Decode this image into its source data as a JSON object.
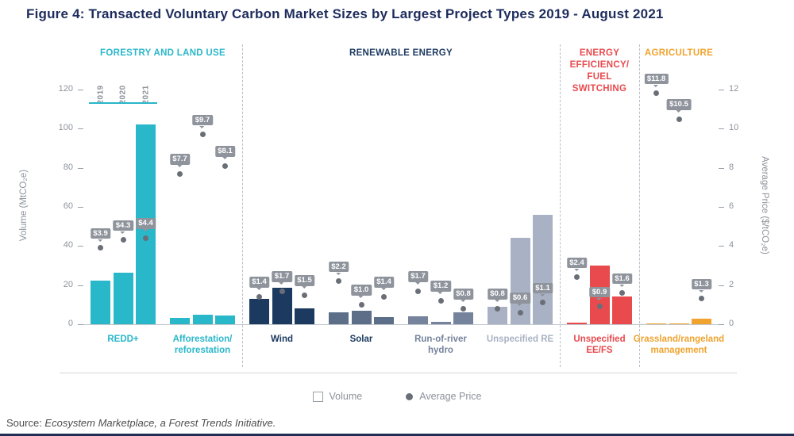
{
  "title": "Figure 4: Transacted Voluntary Carbon Market Sizes by Largest Project Types 2019 - August 2021",
  "legend": {
    "volume_label": "Volume",
    "price_label": "Average Price"
  },
  "source": {
    "prefix": "Source: ",
    "text": "Ecosystem Marketplace, a Forest Trends Initiative."
  },
  "chart_data": {
    "type": "bar",
    "title": "Transacted Voluntary Carbon Market Sizes by Largest Project Types 2019 - August 2021",
    "years": [
      "2019",
      "2020",
      "2021"
    ],
    "left_axis": {
      "label": "Volume (MtCO₂e)",
      "ticks": [
        0,
        20,
        40,
        60,
        80,
        100,
        120
      ],
      "max": 120
    },
    "right_axis": {
      "label": "Average Price ($/tCO₂e)",
      "ticks": [
        0,
        2,
        4,
        6,
        8,
        10,
        12
      ],
      "max": 12
    },
    "legend_position": "bottom",
    "grid": false,
    "sections": [
      {
        "name": "FORESTRY AND LAND USE",
        "color": "#29b7ca",
        "groups": [
          {
            "label": "REDD+",
            "bar_color": "#29b7ca",
            "label_color": "#29b7ca",
            "volumes": [
              22.5,
              26.5,
              102
            ],
            "prices": [
              3.9,
              4.3,
              4.4
            ]
          },
          {
            "label": "Afforestation/\nreforestation",
            "bar_color": "#29b7ca",
            "label_color": "#29b7ca",
            "volumes": [
              3.2,
              5,
              4.3
            ],
            "prices": [
              7.7,
              9.7,
              8.1
            ]
          }
        ]
      },
      {
        "name": "RENEWABLE ENERGY",
        "color": "#1c3a60",
        "groups": [
          {
            "label": "Wind",
            "bar_color": "#1c3a60",
            "label_color": "#1c3a60",
            "volumes": [
              13,
              18.5,
              8
            ],
            "prices": [
              1.4,
              1.7,
              1.5
            ]
          },
          {
            "label": "Solar",
            "bar_color": "#5d6e89",
            "label_color": "#1c3a60",
            "volumes": [
              6,
              6.8,
              3.5
            ],
            "prices": [
              2.2,
              1.0,
              1.4
            ]
          },
          {
            "label": "Run-of-river\nhydro",
            "bar_color": "#76839c",
            "label_color": "#76839c",
            "volumes": [
              4,
              1.2,
              6
            ],
            "prices": [
              1.7,
              1.2,
              0.8
            ]
          },
          {
            "label": "Unspecified RE",
            "bar_color": "#a9b1c4",
            "label_color": "#a9b1c4",
            "volumes": [
              9,
              44,
              56
            ],
            "prices": [
              0.8,
              0.6,
              1.1
            ]
          }
        ]
      },
      {
        "name": "ENERGY\nEFFICIENCY/\nFUEL\nSWITCHING",
        "color": "#e84a4e",
        "groups": [
          {
            "label": "Unspecified\nEE/FS",
            "bar_color": "#e84a4e",
            "label_color": "#e84a4e",
            "volumes": [
              1,
              30,
              14
            ],
            "prices": [
              2.4,
              0.9,
              1.6
            ]
          }
        ]
      },
      {
        "name": "AGRICULTURE",
        "color": "#f0a32e",
        "groups": [
          {
            "label": "Grassland/rangeland\nmanagement",
            "bar_color": "#f0a32e",
            "label_color": "#f0a32e",
            "volumes": [
              0.4,
              0.4,
              2.8
            ],
            "prices": [
              11.8,
              10.5,
              1.3
            ]
          }
        ]
      }
    ]
  }
}
